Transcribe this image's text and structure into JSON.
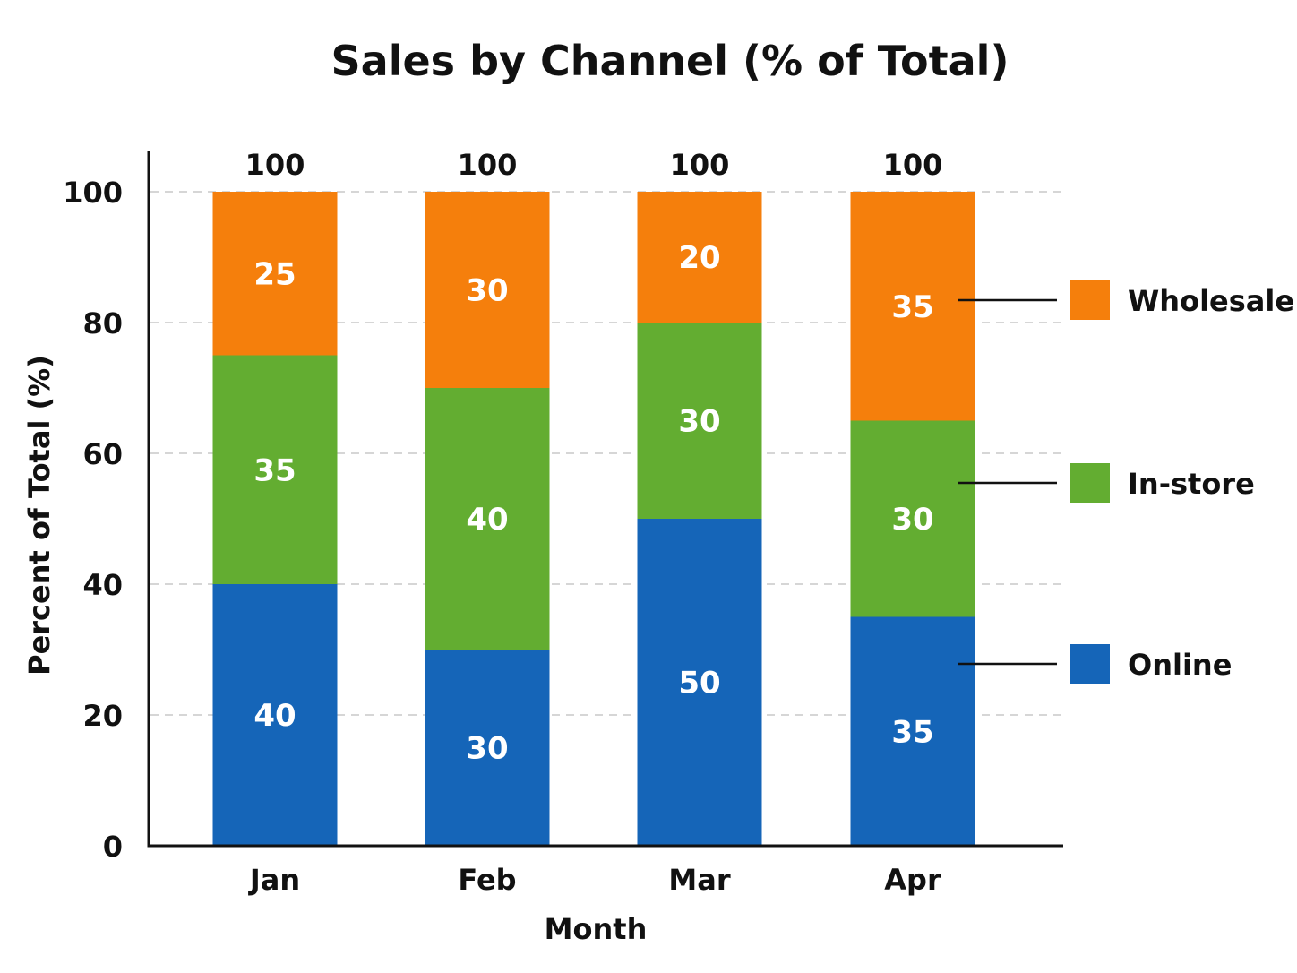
{
  "chart_data": {
    "type": "bar",
    "stacked": true,
    "title": "Sales by Channel (% of Total)",
    "xlabel": "Month",
    "ylabel": "Percent of Total (%)",
    "ylim": [
      0,
      100
    ],
    "yticks": [
      0,
      20,
      40,
      60,
      80,
      100
    ],
    "grid": true,
    "legend_position": "right",
    "categories": [
      "Jan",
      "Feb",
      "Mar",
      "Apr"
    ],
    "totals": [
      100,
      100,
      100,
      100
    ],
    "series": [
      {
        "name": "Online",
        "color": "#1565b8",
        "values": [
          40,
          30,
          50,
          35
        ]
      },
      {
        "name": "In-store",
        "color": "#63ad31",
        "values": [
          35,
          40,
          30,
          30
        ]
      },
      {
        "name": "Wholesale",
        "color": "#f57f0c",
        "values": [
          25,
          30,
          20,
          35
        ]
      }
    ]
  }
}
